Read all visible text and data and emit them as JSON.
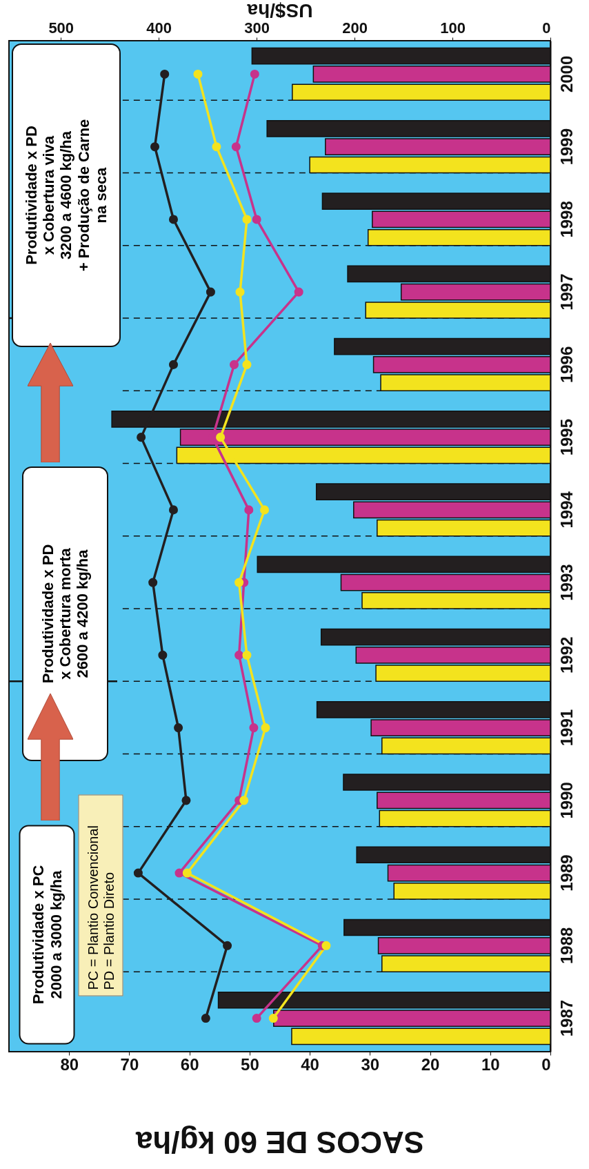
{
  "chart_data": {
    "type": "bar",
    "orientation": "horizontal",
    "xlabel": "SACOS DE 60 kg/ha",
    "x2label": "US$/ha",
    "categories": [
      "2000",
      "1999",
      "1998",
      "1997",
      "1996",
      "1995",
      "1994",
      "1993",
      "1992",
      "1991",
      "1990",
      "1989",
      "1988",
      "1987"
    ],
    "series": [
      {
        "type": "bar",
        "color": "#f3e31e",
        "values": [
          42.9,
          40,
          30.3,
          30.7,
          28.2,
          62.1,
          28.8,
          31.3,
          29,
          28,
          28.4,
          26,
          28,
          43
        ]
      },
      {
        "type": "bar",
        "color": "#c7338b",
        "values": [
          39.4,
          37.4,
          29.6,
          24.8,
          29.4,
          61.5,
          32.7,
          34.8,
          32.3,
          29.8,
          28.8,
          27,
          28.6,
          46
        ]
      },
      {
        "type": "bar",
        "color": "#231f20",
        "values": [
          49.6,
          47.1,
          37.9,
          33.7,
          35.9,
          72.9,
          38.9,
          48.7,
          38.1,
          38.8,
          34.4,
          32.2,
          34.3,
          55.2
        ]
      },
      {
        "type": "line",
        "axis": "x2",
        "color": "#231f20",
        "values": [
          394,
          404,
          385,
          347,
          385,
          418,
          385,
          406,
          396,
          380,
          372,
          421,
          330,
          352
        ]
      },
      {
        "type": "line",
        "axis": "x2",
        "color": "#c7338b",
        "values": [
          302,
          321,
          300,
          257,
          323,
          345,
          308,
          313,
          318,
          303,
          318,
          379,
          233,
          300
        ]
      },
      {
        "type": "line",
        "axis": "x2",
        "color": "#f3e31e",
        "values": [
          360,
          341,
          310,
          317,
          310,
          337,
          292,
          318,
          310,
          291,
          313,
          371,
          229,
          283
        ]
      }
    ],
    "xlim": [
      90,
      0
    ],
    "xticks": [
      0,
      10,
      20,
      30,
      40,
      50,
      60,
      70,
      80
    ],
    "x2lim": [
      553,
      0
    ],
    "x2ticks": [
      0,
      100,
      200,
      300,
      400,
      500
    ],
    "marker": "circle",
    "line_style": "solid",
    "ref_lines": [
      {
        "axis": "y",
        "value": "1992"
      },
      {
        "axis": "y",
        "value": "1997"
      },
      {
        "axis": "y",
        "value": "2000",
        "line_style": "dashed"
      },
      {
        "axis": "y",
        "value": "1999",
        "line_style": "dashed"
      },
      {
        "axis": "y",
        "value": "1998",
        "line_style": "dashed"
      },
      {
        "axis": "y",
        "value": "1997",
        "line_style": "dashed"
      },
      {
        "axis": "y",
        "value": "1996",
        "line_style": "dashed"
      },
      {
        "axis": "y",
        "value": "1995",
        "line_style": "dashed"
      },
      {
        "axis": "y",
        "value": "1994",
        "line_style": "dashed"
      },
      {
        "axis": "y",
        "value": "1993",
        "line_style": "dashed"
      },
      {
        "axis": "y",
        "value": "1992",
        "line_style": "dashed"
      },
      {
        "axis": "y",
        "value": "1991",
        "line_style": "dashed"
      },
      {
        "axis": "y",
        "value": "1990",
        "line_style": "dashed"
      },
      {
        "axis": "y",
        "value": "1989",
        "line_style": "dashed"
      },
      {
        "axis": "y",
        "value": "1988",
        "line_style": "dashed"
      }
    ],
    "annotations": [
      "Produtividade x PC\n2000 a 3000 kg/ha",
      "Produtividade x PD\nx Cobertura morta\n2600 a 4200 kg/ha",
      "Produtividade x PD\nx Cobertura viva\n3200 a 4600 kg/ha\n+ Produção de Carne\nna seca",
      "PC = Plantio Convencional\nPD = Plantio Direto"
    ]
  }
}
